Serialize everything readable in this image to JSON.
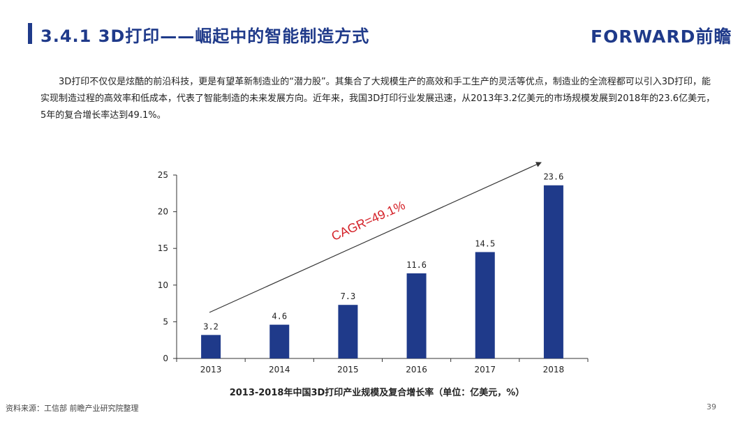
{
  "header": {
    "title": "3.4.1 3D打印——崛起中的智能制造方式",
    "logo": "FORWARD前瞻"
  },
  "paragraph": "3D打印不仅仅是炫酷的前沿科技，更是有望革新制造业的“潜力股”。其集合了大规模生产的高效和手工生产的灵活等优点，制造业的全流程都可以引入3D打印，能实现制造过程的高效率和低成本，代表了智能制造的未来发展方向。近年来，我国3D打印行业发展迅速，从2013年3.2亿美元的市场规模发展到2018年的23.6亿美元，5年的复合增长率达到49.1%。",
  "chart_data": {
    "type": "bar",
    "categories": [
      "2013",
      "2014",
      "2015",
      "2016",
      "2017",
      "2018"
    ],
    "values": [
      3.2,
      4.6,
      7.3,
      11.6,
      14.5,
      23.6
    ],
    "value_labels": [
      "3.2",
      "4.6",
      "7.3",
      "11.6",
      "14.5",
      "23.6"
    ],
    "ylim": [
      0,
      25
    ],
    "yticks": [
      "0",
      "5",
      "10",
      "15",
      "20",
      "25"
    ],
    "title": "",
    "xlabel": "",
    "ylabel": "",
    "annotation": "CAGR=49.1%",
    "bar_color": "#1f3a8a",
    "annotation_color": "#d42027",
    "grid": false
  },
  "caption": "2013-2018年中国3D打印产业规模及复合增长率（单位：亿美元，%）",
  "footer": {
    "source": "资料来源：工信部 前瞻产业研究院整理",
    "page_number": "39"
  }
}
